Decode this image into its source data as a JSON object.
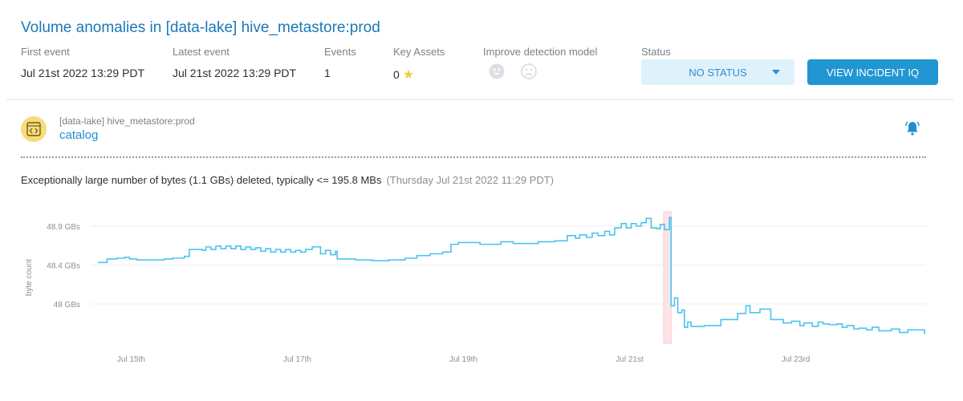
{
  "header": {
    "title": "Volume anomalies in [data-lake] hive_metastore:prod",
    "first_event_label": "First event",
    "first_event_value": "Jul 21st 2022 13:29 PDT",
    "latest_event_label": "Latest event",
    "latest_event_value": "Jul 21st 2022 13:29 PDT",
    "events_label": "Events",
    "events_value": "1",
    "key_assets_label": "Key Assets",
    "key_assets_value": "0",
    "improve_label": "Improve detection model",
    "status_label": "Status",
    "status_value": "NO STATUS",
    "view_incident_label": "VIEW INCIDENT IQ"
  },
  "asset": {
    "path": "[data-lake] hive_metastore:prod",
    "name": "catalog"
  },
  "anomaly": {
    "description": "Exceptionally large number of bytes (1.1 GBs) deleted, typically <= 195.8 MBs",
    "timestamp": "(Thursday Jul 21st 2022 11:29 PDT)"
  },
  "colors": {
    "accent": "#2196d3",
    "line": "#4cc3ef",
    "anomaly": "#f9c9cf",
    "star": "#f5c842"
  },
  "chart_data": {
    "type": "line",
    "step": true,
    "ylabel": "byte count",
    "xlabel": "",
    "xlim": [
      14.6,
      24.55
    ],
    "ylim": [
      47.55,
      49.05
    ],
    "y_ticks": [
      {
        "value": 48.9,
        "label": "48.9 GBs"
      },
      {
        "value": 48.45,
        "label": "48.4 GBs"
      },
      {
        "value": 48.0,
        "label": "48 GBs"
      }
    ],
    "x_ticks": [
      {
        "value": 15,
        "label": "Jul 15th"
      },
      {
        "value": 17,
        "label": "Jul 17th"
      },
      {
        "value": 19,
        "label": "Jul 19th"
      },
      {
        "value": 21,
        "label": "Jul 21st"
      },
      {
        "value": 23,
        "label": "Jul 23rd"
      }
    ],
    "anomaly_range": [
      21.41,
      21.5
    ],
    "series": [
      {
        "name": "byte count (GBs)",
        "points": [
          [
            14.6,
            48.48
          ],
          [
            14.71,
            48.52
          ],
          [
            14.83,
            48.53
          ],
          [
            14.92,
            48.54
          ],
          [
            14.98,
            48.52
          ],
          [
            15.07,
            48.51
          ],
          [
            15.4,
            48.52
          ],
          [
            15.5,
            48.53
          ],
          [
            15.64,
            48.55
          ],
          [
            15.7,
            48.63
          ],
          [
            15.86,
            48.62
          ],
          [
            15.9,
            48.66
          ],
          [
            15.96,
            48.63
          ],
          [
            16.02,
            48.67
          ],
          [
            16.08,
            48.64
          ],
          [
            16.14,
            48.67
          ],
          [
            16.2,
            48.64
          ],
          [
            16.26,
            48.67
          ],
          [
            16.32,
            48.63
          ],
          [
            16.38,
            48.66
          ],
          [
            16.44,
            48.63
          ],
          [
            16.5,
            48.65
          ],
          [
            16.56,
            48.61
          ],
          [
            16.62,
            48.64
          ],
          [
            16.68,
            48.6
          ],
          [
            16.74,
            48.63
          ],
          [
            16.8,
            48.6
          ],
          [
            16.86,
            48.63
          ],
          [
            16.92,
            48.6
          ],
          [
            16.98,
            48.62
          ],
          [
            17.04,
            48.6
          ],
          [
            17.1,
            48.63
          ],
          [
            17.18,
            48.66
          ],
          [
            17.28,
            48.58
          ],
          [
            17.34,
            48.62
          ],
          [
            17.4,
            48.57
          ],
          [
            17.46,
            48.61
          ],
          [
            17.48,
            48.52
          ],
          [
            17.7,
            48.51
          ],
          [
            17.9,
            48.5
          ],
          [
            18.1,
            48.51
          ],
          [
            18.3,
            48.53
          ],
          [
            18.44,
            48.56
          ],
          [
            18.6,
            48.58
          ],
          [
            18.75,
            48.6
          ],
          [
            18.85,
            48.69
          ],
          [
            18.94,
            48.71
          ],
          [
            19.2,
            48.69
          ],
          [
            19.45,
            48.72
          ],
          [
            19.6,
            48.7
          ],
          [
            19.7,
            48.7
          ],
          [
            19.9,
            48.72
          ],
          [
            20.1,
            48.73
          ],
          [
            20.25,
            48.79
          ],
          [
            20.35,
            48.76
          ],
          [
            20.4,
            48.8
          ],
          [
            20.48,
            48.77
          ],
          [
            20.55,
            48.82
          ],
          [
            20.62,
            48.79
          ],
          [
            20.7,
            48.84
          ],
          [
            20.76,
            48.8
          ],
          [
            20.82,
            48.88
          ],
          [
            20.9,
            48.93
          ],
          [
            20.96,
            48.88
          ],
          [
            21.02,
            48.93
          ],
          [
            21.08,
            48.9
          ],
          [
            21.14,
            48.94
          ],
          [
            21.2,
            48.99
          ],
          [
            21.26,
            48.88
          ],
          [
            21.33,
            48.87
          ],
          [
            21.37,
            48.92
          ],
          [
            21.42,
            48.86
          ],
          [
            21.48,
            49.0
          ],
          [
            21.5,
            47.98
          ],
          [
            21.54,
            48.07
          ],
          [
            21.58,
            47.9
          ],
          [
            21.63,
            47.93
          ],
          [
            21.66,
            47.73
          ],
          [
            21.7,
            47.79
          ],
          [
            21.74,
            47.74
          ],
          [
            21.9,
            47.75
          ],
          [
            22.1,
            47.82
          ],
          [
            22.3,
            47.89
          ],
          [
            22.4,
            47.98
          ],
          [
            22.45,
            47.9
          ],
          [
            22.57,
            47.94
          ],
          [
            22.7,
            47.82
          ],
          [
            22.85,
            47.78
          ],
          [
            22.95,
            47.8
          ],
          [
            23.05,
            47.75
          ],
          [
            23.1,
            47.78
          ],
          [
            23.2,
            47.74
          ],
          [
            23.27,
            47.79
          ],
          [
            23.33,
            47.77
          ],
          [
            23.4,
            47.76
          ],
          [
            23.5,
            47.77
          ],
          [
            23.56,
            47.73
          ],
          [
            23.62,
            47.75
          ],
          [
            23.7,
            47.71
          ],
          [
            23.76,
            47.72
          ],
          [
            23.85,
            47.7
          ],
          [
            23.92,
            47.73
          ],
          [
            24.0,
            47.69
          ],
          [
            24.15,
            47.71
          ],
          [
            24.25,
            47.67
          ],
          [
            24.35,
            47.7
          ],
          [
            24.55,
            47.65
          ]
        ]
      }
    ]
  }
}
